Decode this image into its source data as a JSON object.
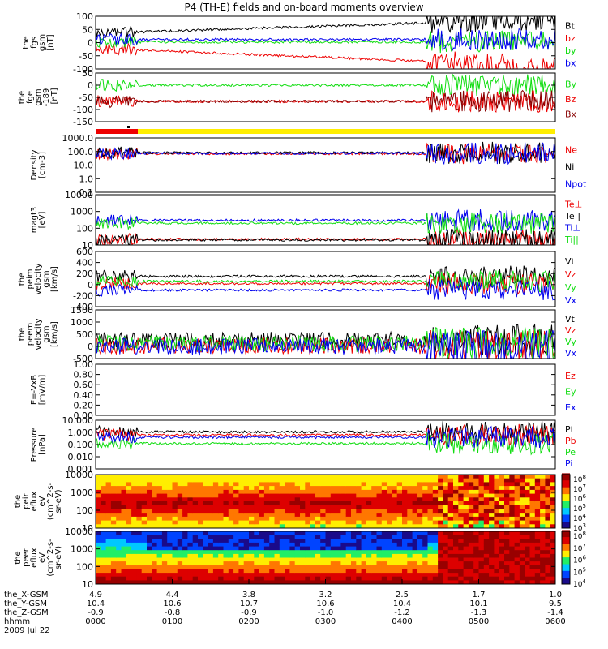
{
  "title": "P4 (TH-E) fields and on-board moments overview",
  "colors": {
    "black": "#000000",
    "red": "#ee0000",
    "green": "#11dd11",
    "blue": "#0000ee",
    "darkred": "#880000",
    "yellow": "#ffee00"
  },
  "chart_data": [
    {
      "type": "line",
      "panel": "fgs-gsm",
      "ylabel": [
        "the",
        "fgs",
        "gsm",
        "[nT]"
      ],
      "yticks": [
        "100",
        "50",
        "0",
        "-50",
        "-100"
      ],
      "ylim": [
        -100,
        100
      ],
      "log": false,
      "series": [
        {
          "name": "Bt",
          "color": "black",
          "level": 35
        },
        {
          "name": "bz",
          "color": "red",
          "level": -22
        },
        {
          "name": "by",
          "color": "green",
          "level": 2
        },
        {
          "name": "bx",
          "color": "blue",
          "level": 12
        }
      ]
    },
    {
      "type": "line",
      "panel": "fge-gsm",
      "ylabel": [
        "the",
        "fge",
        "gsm",
        "-189",
        " [nT]"
      ],
      "yticks": [
        "50",
        "0",
        "-50",
        "-100",
        "-150"
      ],
      "ylim": [
        -180,
        60
      ],
      "log": false,
      "series": [
        {
          "name": "By",
          "color": "green",
          "level": 0
        },
        {
          "name": "Bz",
          "color": "red",
          "level": -80
        },
        {
          "name": "Bx",
          "color": "darkred",
          "level": -80
        }
      ]
    },
    {
      "type": "line",
      "panel": "density",
      "ylabel": [
        "Density",
        "[cm-3]"
      ],
      "yticks": [
        "1000.0",
        "100.0",
        "10.0",
        "1.0",
        "0.1"
      ],
      "ylim": [
        0.1,
        1000
      ],
      "log": true,
      "series": [
        {
          "name": "Ne",
          "color": "red",
          "level": 70
        },
        {
          "name": "Ni",
          "color": "black",
          "level": 80
        },
        {
          "name": "Npot",
          "color": "blue",
          "level": 75
        }
      ]
    },
    {
      "type": "line",
      "panel": "temperature",
      "ylabel": [
        "magt3",
        "[eV]"
      ],
      "yticks": [
        "10000",
        "1000",
        "100",
        "10"
      ],
      "ylim": [
        10,
        10000
      ],
      "log": true,
      "series": [
        {
          "name": "Te⊥",
          "color": "red",
          "level": 22
        },
        {
          "name": "Te||",
          "color": "black",
          "level": 20
        },
        {
          "name": "Ti⊥",
          "color": "blue",
          "level": 300
        },
        {
          "name": "Ti||",
          "color": "green",
          "level": 200
        }
      ]
    },
    {
      "type": "line",
      "panel": "peim-velocity",
      "ylabel": [
        "the",
        "peim",
        "velocity",
        "gsm",
        "[km/s]"
      ],
      "yticks": [
        "600",
        "400",
        "200",
        "0",
        "-200",
        "-400"
      ],
      "ylim": [
        -400,
        600
      ],
      "log": false,
      "series": [
        {
          "name": "Vt",
          "color": "black",
          "level": 150
        },
        {
          "name": "Vz",
          "color": "red",
          "level": 20
        },
        {
          "name": "Vy",
          "color": "green",
          "level": 60
        },
        {
          "name": "Vx",
          "color": "blue",
          "level": -100
        }
      ]
    },
    {
      "type": "line",
      "panel": "peem-velocity",
      "ylabel": [
        "the",
        "peem",
        "velocity",
        "gsm",
        "[km/s]"
      ],
      "yticks": [
        "1500",
        "1000",
        "500",
        "0",
        "-500"
      ],
      "ylim": [
        -600,
        1500
      ],
      "log": false,
      "series": [
        {
          "name": "Vt",
          "color": "black",
          "level": 200
        },
        {
          "name": "Vz",
          "color": "red",
          "level": -50
        },
        {
          "name": "Vy",
          "color": "green",
          "level": 50
        },
        {
          "name": "Vx",
          "color": "blue",
          "level": -80
        }
      ]
    },
    {
      "type": "line",
      "panel": "efield",
      "ylabel": [
        "E=-VxB",
        "[mV/m]"
      ],
      "yticks": [
        "1.00",
        "0.80",
        "0.60",
        "0.40",
        "0.20",
        "0.00"
      ],
      "ylim": [
        0,
        1
      ],
      "log": false,
      "series": [
        {
          "name": "Ez",
          "color": "red",
          "level": null
        },
        {
          "name": "Ey",
          "color": "green",
          "level": null
        },
        {
          "name": "Ex",
          "color": "blue",
          "level": null
        }
      ]
    },
    {
      "type": "line",
      "panel": "pressure",
      "ylabel": [
        "Pressure",
        "[nPa]"
      ],
      "yticks": [
        "10.000",
        "1.000",
        "0.100",
        "0.010",
        "0.001"
      ],
      "ylim": [
        0.001,
        10
      ],
      "log": true,
      "series": [
        {
          "name": "Pt",
          "color": "black",
          "level": 1.1
        },
        {
          "name": "Pb",
          "color": "red",
          "level": 0.6
        },
        {
          "name": "Pe",
          "color": "green",
          "level": 0.12
        },
        {
          "name": "Pi",
          "color": "blue",
          "level": 0.4
        }
      ]
    },
    {
      "type": "heatmap",
      "panel": "peir-eflux",
      "ylabel": [
        "the",
        "peir",
        "eflux",
        "eV",
        "(cm^2-s-",
        "sr-eV)"
      ],
      "yticks": [
        "10000",
        "1000",
        "100",
        "10"
      ],
      "ylim": [
        10,
        20000
      ],
      "log": true,
      "colorbar": [
        "10^8",
        "10^7",
        "10^6",
        "10^5",
        "10^4",
        "10^3"
      ]
    },
    {
      "type": "heatmap",
      "panel": "peer-eflux",
      "ylabel": [
        "the",
        "peer",
        "eflux",
        "eV",
        "(cm^2-s-",
        "sr-eV)"
      ],
      "yticks": [
        "10000",
        "1000",
        "100",
        "10"
      ],
      "ylim": [
        10,
        20000
      ],
      "log": true,
      "colorbar": [
        "10^8",
        "10^7",
        "10^6",
        "10^5",
        "10^4"
      ]
    }
  ],
  "footer": {
    "rows": [
      {
        "label": "the_X-GSM",
        "values": [
          "4.9",
          "4.4",
          "3.8",
          "3.2",
          "2.5",
          "1.7",
          "1.0"
        ]
      },
      {
        "label": "the_Y-GSM",
        "values": [
          "10.4",
          "10.6",
          "10.7",
          "10.6",
          "10.4",
          "10.1",
          "9.5"
        ]
      },
      {
        "label": "the_Z-GSM",
        "values": [
          "-0.9",
          "-0.8",
          "-0.9",
          "-1.0",
          "-1.2",
          "-1.3",
          "-1.4"
        ]
      },
      {
        "label": "hhmm",
        "values": [
          "0000",
          "0100",
          "0200",
          "0300",
          "0400",
          "0500",
          "0600"
        ]
      }
    ],
    "date": "2009 Jul 22"
  }
}
